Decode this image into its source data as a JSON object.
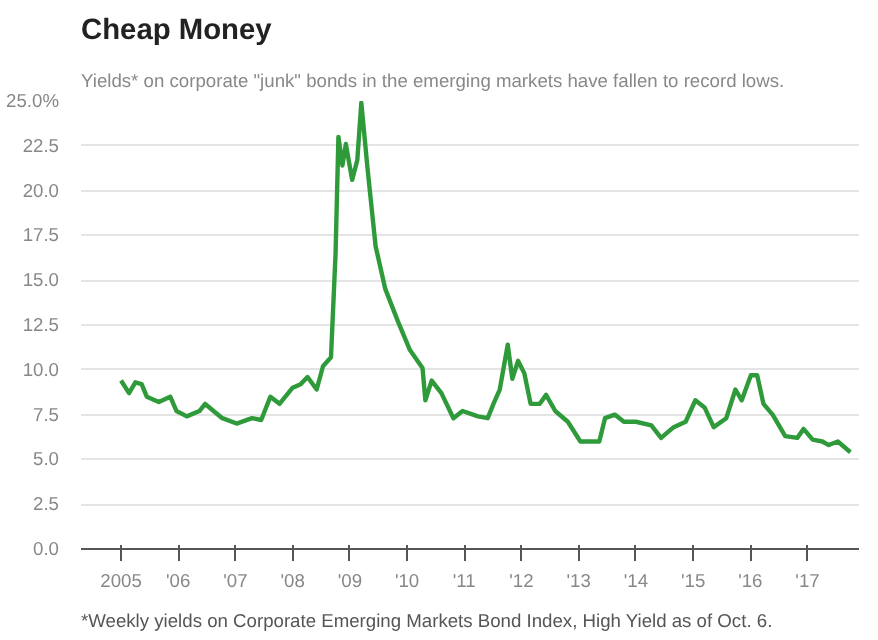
{
  "chart_data": {
    "type": "line",
    "title": "Cheap Money",
    "subtitle": "Yields* on corporate \"junk\" bonds in the emerging markets have fallen to record lows.",
    "annotations": [
      "*Weekly yields on Corporate Emerging Markets Bond Index, High Yield as of Oct. 6."
    ],
    "xlim": [
      2004.3,
      2017.9
    ],
    "xticks": [
      {
        "value": 2005,
        "label": "2005"
      },
      {
        "value": 2006,
        "label": "'06"
      },
      {
        "value": 2007,
        "label": "'07"
      },
      {
        "value": 2008,
        "label": "'08"
      },
      {
        "value": 2009,
        "label": "'09"
      },
      {
        "value": 2010,
        "label": "'10"
      },
      {
        "value": 2011,
        "label": "'11"
      },
      {
        "value": 2012,
        "label": "'12"
      },
      {
        "value": 2013,
        "label": "'13"
      },
      {
        "value": 2014,
        "label": "'14"
      },
      {
        "value": 2015,
        "label": "'15"
      },
      {
        "value": 2016,
        "label": "'16"
      },
      {
        "value": 2017,
        "label": "'17"
      }
    ],
    "ylim": [
      0,
      25
    ],
    "yticks": [
      {
        "value": 0,
        "label": "0.0"
      },
      {
        "value": 2.5,
        "label": "2.5"
      },
      {
        "value": 5,
        "label": "5.0"
      },
      {
        "value": 7.5,
        "label": "7.5"
      },
      {
        "value": 10,
        "label": "10.0"
      },
      {
        "value": 12.5,
        "label": "12.5"
      },
      {
        "value": 15,
        "label": "15.0"
      },
      {
        "value": 17.5,
        "label": "17.5"
      },
      {
        "value": 20,
        "label": "20.0"
      },
      {
        "value": 22.5,
        "label": "22.5"
      },
      {
        "value": 25,
        "label": "25.0%"
      }
    ],
    "grid": "y",
    "marker": "none",
    "line_style": "solid",
    "series": [
      {
        "color": "#2e9a3a",
        "x": [
          2005.0,
          2005.14,
          2005.25,
          2005.36,
          2005.45,
          2005.66,
          2005.86,
          2005.97,
          2006.15,
          2006.37,
          2006.47,
          2006.58,
          2006.77,
          2007.02,
          2007.29,
          2007.45,
          2007.61,
          2007.77,
          2008.0,
          2008.14,
          2008.26,
          2008.42,
          2008.53,
          2008.67,
          2008.75,
          2008.8,
          2008.87,
          2008.93,
          2009.04,
          2009.13,
          2009.2,
          2009.31,
          2009.45,
          2009.62,
          2009.84,
          2010.05,
          2010.27,
          2010.32,
          2010.43,
          2010.6,
          2010.81,
          2010.97,
          2011.24,
          2011.41,
          2011.51,
          2011.62,
          2011.76,
          2011.84,
          2011.94,
          2012.05,
          2012.16,
          2012.32,
          2012.43,
          2012.59,
          2012.81,
          2013.03,
          2013.36,
          2013.46,
          2013.63,
          2013.79,
          2014.0,
          2014.27,
          2014.44,
          2014.66,
          2014.87,
          2015.04,
          2015.2,
          2015.36,
          2015.58,
          2015.74,
          2015.85,
          2016.01,
          2016.12,
          2016.23,
          2016.39,
          2016.61,
          2016.82,
          2016.93,
          2017.09,
          2017.26,
          2017.37,
          2017.53,
          2017.75
        ],
        "values": [
          9.4,
          8.7,
          9.3,
          9.2,
          8.5,
          8.2,
          8.5,
          7.7,
          7.4,
          7.7,
          8.1,
          7.8,
          7.3,
          7.0,
          7.3,
          7.2,
          8.5,
          8.1,
          9.0,
          9.2,
          9.6,
          8.9,
          10.2,
          10.7,
          16.5,
          23.0,
          21.4,
          22.6,
          20.6,
          21.7,
          24.9,
          21.2,
          16.9,
          14.5,
          12.7,
          11.1,
          10.1,
          8.3,
          9.4,
          8.7,
          7.3,
          7.7,
          7.4,
          7.3,
          8.1,
          8.9,
          11.4,
          9.5,
          10.5,
          9.8,
          8.1,
          8.1,
          8.6,
          7.7,
          7.1,
          6.0,
          6.0,
          7.3,
          7.5,
          7.1,
          7.1,
          6.9,
          6.2,
          6.8,
          7.1,
          8.3,
          7.9,
          6.8,
          7.3,
          8.9,
          8.3,
          9.7,
          9.7,
          8.1,
          7.5,
          6.3,
          6.2,
          6.7,
          6.1,
          6.0,
          5.8,
          6.0,
          5.4
        ]
      }
    ]
  }
}
